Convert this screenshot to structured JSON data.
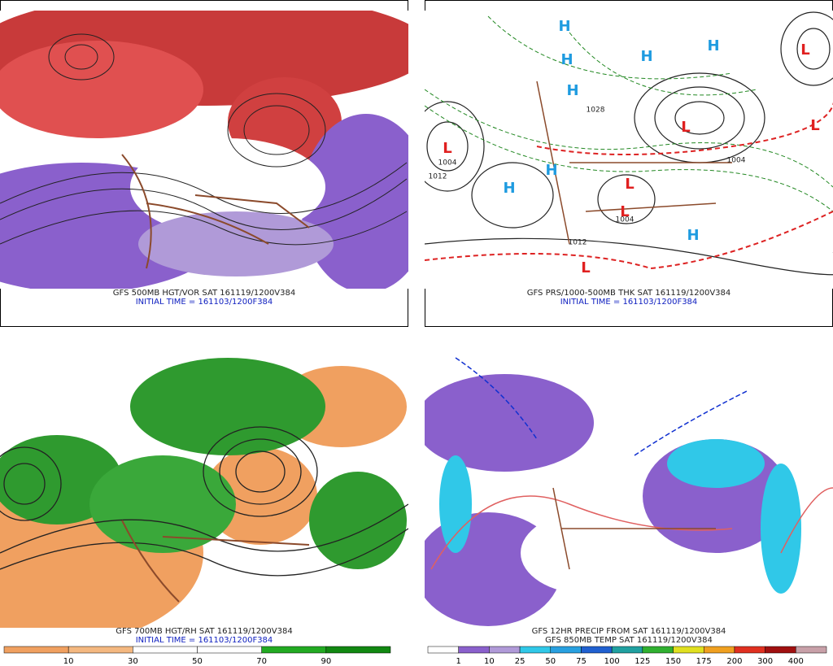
{
  "panels": [
    {
      "caption": [
        "GFS 500MB HGT/VOR SAT 161119/1200V384",
        "INITIAL TIME = 161103/1200F384"
      ]
    },
    {
      "caption": [
        "GFS PRS/1000-500MB THK SAT 161119/1200V384",
        "INITIAL TIME = 161103/1200F384"
      ],
      "centers": [
        "H",
        "H",
        "H",
        "H",
        "H",
        "H",
        "H",
        "H",
        "L",
        "L",
        "L",
        "L",
        "L",
        "L",
        "L"
      ],
      "contour_labels": [
        "1004",
        "1012",
        "1028",
        "1004",
        "1004",
        "1012"
      ]
    },
    {
      "caption": [
        "GFS 700MB HGT/RH SAT 161119/1200V384",
        "INITIAL TIME = 161103/1200F384"
      ],
      "colorbar": [
        10,
        30,
        50,
        70,
        90
      ]
    },
    {
      "caption": [
        "GFS 12HR PRECIP FROM SAT 161119/1200V384",
        "GFS 850MB TEMP SAT 161119/1200V384"
      ],
      "colorbar": [
        1,
        10,
        25,
        50,
        75,
        100,
        125,
        150,
        175,
        200,
        300,
        400
      ]
    }
  ]
}
